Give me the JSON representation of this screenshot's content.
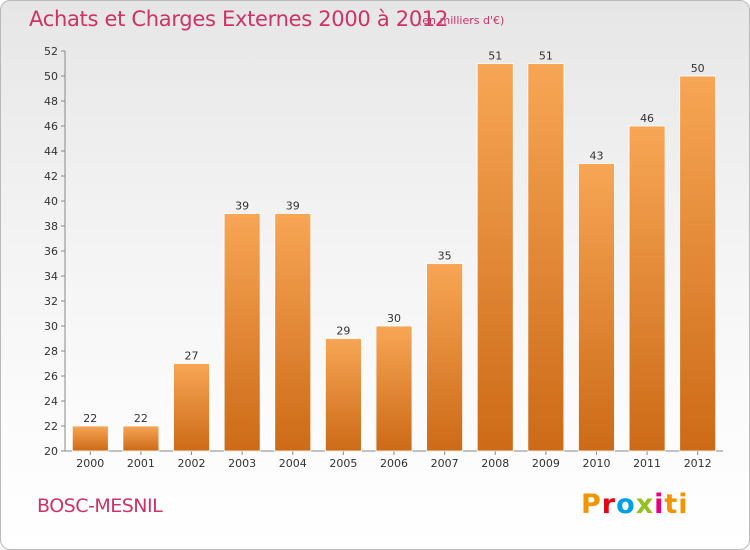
{
  "header": {
    "title": "Achats et Charges Externes 2000 à 2012",
    "subtitle": "(en milliers d'€)"
  },
  "footer": {
    "commune": "BOSC-MESNIL",
    "logo": [
      "P",
      "r",
      "o",
      "x",
      "i",
      "ti"
    ]
  },
  "colors": {
    "bar_top": "#f7a655",
    "bar_bottom": "#cc6a17",
    "title": "#cc3366"
  },
  "chart_data": {
    "type": "bar",
    "categories": [
      "2000",
      "2001",
      "2002",
      "2003",
      "2004",
      "2005",
      "2006",
      "2007",
      "2008",
      "2009",
      "2010",
      "2011",
      "2012"
    ],
    "values": [
      22,
      22,
      27,
      39,
      39,
      29,
      30,
      35,
      51,
      51,
      43,
      46,
      50
    ],
    "ylim": [
      20,
      52
    ],
    "yticks": [
      20,
      22,
      24,
      26,
      28,
      30,
      32,
      34,
      36,
      38,
      40,
      42,
      44,
      46,
      48,
      50,
      52
    ],
    "grid": false,
    "legend": "none"
  }
}
